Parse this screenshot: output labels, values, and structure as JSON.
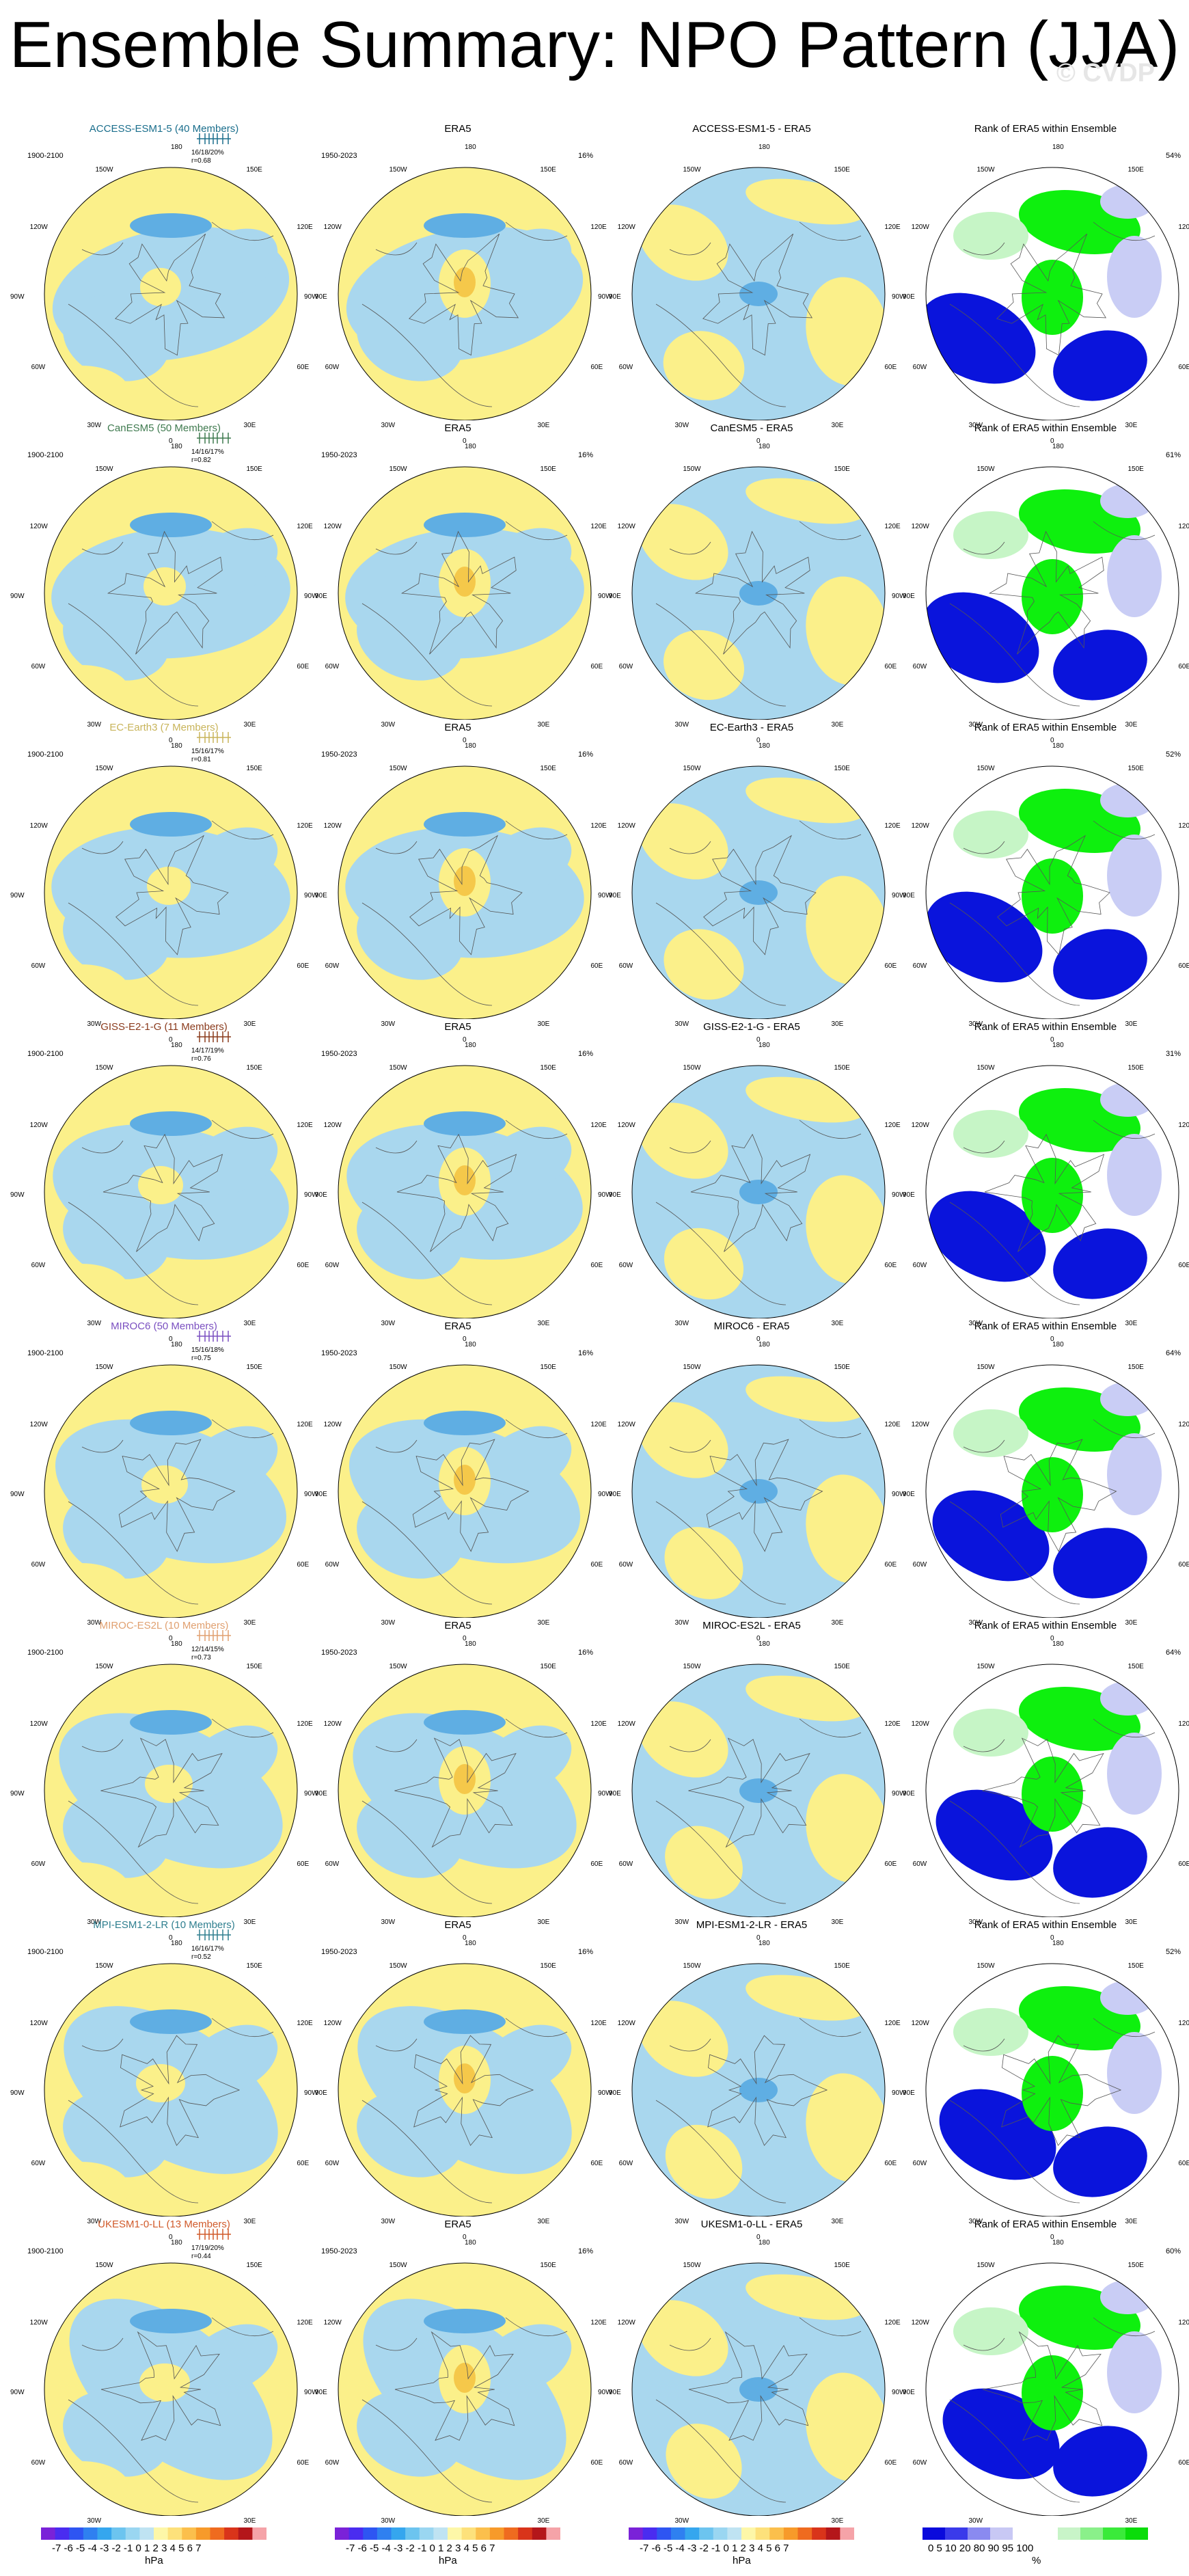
{
  "title": "Ensemble Summary: NPO Pattern (JJA)",
  "watermark": "© CVDP",
  "column_titles": {
    "era5": "ERA5",
    "rank": "Rank of ERA5 within Ensemble"
  },
  "years": {
    "model": "1900-2100",
    "obs": "1950-2023"
  },
  "obs_pct": "16%",
  "lon_labels": [
    "180",
    "150W",
    "150E",
    "120W",
    "120E",
    "90W",
    "90E",
    "60W",
    "60E",
    "30W",
    "30E",
    "0"
  ],
  "rows": [
    {
      "model": "ACCESS-ESM1-5 (40 Members)",
      "diff": "ACCESS-ESM1-5 - ERA5",
      "color": "#1a6e8c",
      "stat1": "16/18/20%",
      "stat2": "r=0.68",
      "rank_pct": "54%"
    },
    {
      "model": "CanESM5 (50 Members)",
      "diff": "CanESM5 - ERA5",
      "color": "#3f7a4f",
      "stat1": "14/16/17%",
      "stat2": "r=0.82",
      "rank_pct": "61%"
    },
    {
      "model": "EC-Earth3 (7 Members)",
      "diff": "EC-Earth3 - ERA5",
      "color": "#c8b45a",
      "stat1": "15/16/17%",
      "stat2": "r=0.81",
      "rank_pct": "52%"
    },
    {
      "model": "GISS-E2-1-G (11 Members)",
      "diff": "GISS-E2-1-G - ERA5",
      "color": "#8a3a1c",
      "stat1": "14/17/19%",
      "stat2": "r=0.76",
      "rank_pct": "31%"
    },
    {
      "model": "MIROC6 (50 Members)",
      "diff": "MIROC6 - ERA5",
      "color": "#7a4fc0",
      "stat1": "15/16/18%",
      "stat2": "r=0.75",
      "rank_pct": "64%"
    },
    {
      "model": "MIROC-ES2L (10 Members)",
      "diff": "MIROC-ES2L - ERA5",
      "color": "#e0a070",
      "stat1": "12/14/15%",
      "stat2": "r=0.73",
      "rank_pct": "64%"
    },
    {
      "model": "MPI-ESM1-2-LR (10 Members)",
      "diff": "MPI-ESM1-2-LR - ERA5",
      "color": "#2f7f8f",
      "stat1": "16/16/17%",
      "stat2": "r=0.52",
      "rank_pct": "52%"
    },
    {
      "model": "UKESM1-0-LL (13 Members)",
      "diff": "UKESM1-0-LL - ERA5",
      "color": "#d05a2a",
      "stat1": "17/19/20%",
      "stat2": "r=0.44",
      "rank_pct": "60%"
    }
  ],
  "colorbar_hpa": {
    "ticks": "-7 -6 -5 -4 -3 -2 -1 0  1  2  3  4  5  6  7",
    "unit": "hPa",
    "colors": [
      "#7a22d8",
      "#4a2cf0",
      "#2e55f2",
      "#2f80f0",
      "#35a6ee",
      "#6cc4ef",
      "#9ad6f1",
      "#bfe3f2",
      "#fdf7a8",
      "#fde17b",
      "#fbbf4c",
      "#f79a2a",
      "#ef6b1f",
      "#d9341a",
      "#b4161a",
      "#f5a3a8"
    ]
  },
  "colorbar_rank": {
    "ticks": "0    5    10         20              80         90    95  100",
    "unit": "%",
    "colors": [
      "#0a0adc",
      "#3a3aea",
      "#8a8af0",
      "#c8c8f4",
      "#ffffff",
      "#ffffff",
      "#c8f4c8",
      "#8af08a",
      "#3aea3a",
      "#0adc0a"
    ]
  },
  "map_colors": {
    "blue": "#a9d7ee",
    "yellow": "#fbf08a",
    "dblue": "#5faee3",
    "orange": "#f5c84a",
    "rank_blue": "#0a14dc",
    "rank_green": "#0ef00e",
    "rank_lblue": "#c9cdf5",
    "rank_lgreen": "#c6f5c6"
  }
}
